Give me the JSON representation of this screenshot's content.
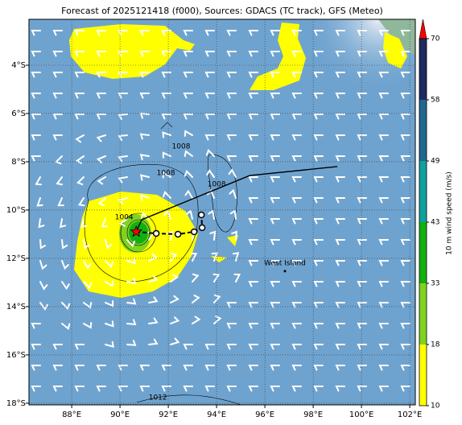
{
  "chart_data": {
    "type": "map",
    "title": "Forecast of 2025121418 (f000), Sources: GDACS (TC track), GFS (Meteo)",
    "xlim": [
      86.23,
      102.23
    ],
    "ylim": [
      -18.07,
      -2.1
    ],
    "xticks": [
      {
        "value": 88,
        "label": "88°E"
      },
      {
        "value": 90,
        "label": "90°E"
      },
      {
        "value": 92,
        "label": "92°E"
      },
      {
        "value": 94,
        "label": "94°E"
      },
      {
        "value": 96,
        "label": "96°E"
      },
      {
        "value": 98,
        "label": "98°E"
      },
      {
        "value": 100,
        "label": "100°E"
      },
      {
        "value": 102,
        "label": "102°E"
      }
    ],
    "yticks": [
      {
        "value": -4,
        "label": "4°S"
      },
      {
        "value": -6,
        "label": "6°S"
      },
      {
        "value": -8,
        "label": "8°S"
      },
      {
        "value": -10,
        "label": "10°S"
      },
      {
        "value": -12,
        "label": "12°S"
      },
      {
        "value": -14,
        "label": "14°S"
      },
      {
        "value": -16,
        "label": "16°S"
      },
      {
        "value": -18,
        "label": "18°S"
      }
    ],
    "grid": true,
    "track": {
      "color": "#000000",
      "past": {
        "lon": [
          99.0,
          95.37,
          90.9,
          90.67
        ],
        "lat": [
          -8.2,
          -8.57,
          -10.4,
          -10.9
        ]
      },
      "forecast": {
        "lon": [
          90.67,
          91.5,
          92.4,
          93.07,
          93.4,
          93.37
        ],
        "lat": [
          -10.9,
          -10.97,
          -11.0,
          -10.9,
          -10.73,
          -10.2
        ]
      }
    },
    "storm": {
      "lon": 90.67,
      "lat": -10.9,
      "color": "#ff0000"
    },
    "places": [
      {
        "name": "West Island",
        "lon": 96.83,
        "lat": -12.2
      }
    ],
    "contour_labels": [
      {
        "text": "1004",
        "lon": 90.17,
        "lat": -10.3
      },
      {
        "text": "1008",
        "lon": 92.53,
        "lat": -7.37
      },
      {
        "text": "1008",
        "lon": 91.9,
        "lat": -8.47
      },
      {
        "text": "1008",
        "lon": 94.0,
        "lat": -8.93
      },
      {
        "text": "1012",
        "lon": 91.57,
        "lat": -17.77
      }
    ],
    "colorbar": {
      "label": "10 m wind speed (m/s)",
      "ticks": [
        10,
        18,
        33,
        43,
        49,
        58,
        70
      ],
      "colors": [
        "#ffff00",
        "#7fd320",
        "#10b010",
        "#10a0a0",
        "#206890",
        "#1e2a60"
      ],
      "extend_color": "#ff0000"
    }
  }
}
